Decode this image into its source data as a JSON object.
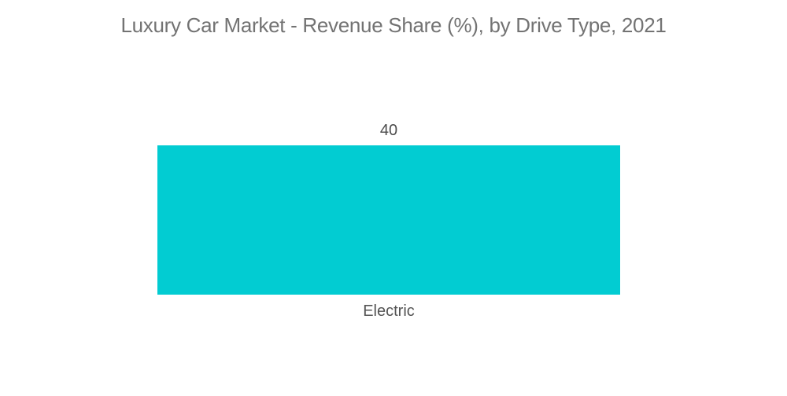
{
  "chart_data": {
    "type": "bar",
    "title": "Luxury Car Market - Revenue Share (%), by Drive Type, 2021",
    "categories": [
      "Electric"
    ],
    "values": [
      40
    ],
    "xlabel": "",
    "ylabel": "",
    "legend": false,
    "axes_visible": false,
    "gridlines": false,
    "data_labels_visible": true,
    "bar_color": "#02ccd2"
  },
  "colors": {
    "bar": "#02ccd2",
    "title_text": "#737373",
    "value_label_text": "#4d4d4d",
    "category_label_text": "#545454",
    "background": "#ffffff"
  }
}
